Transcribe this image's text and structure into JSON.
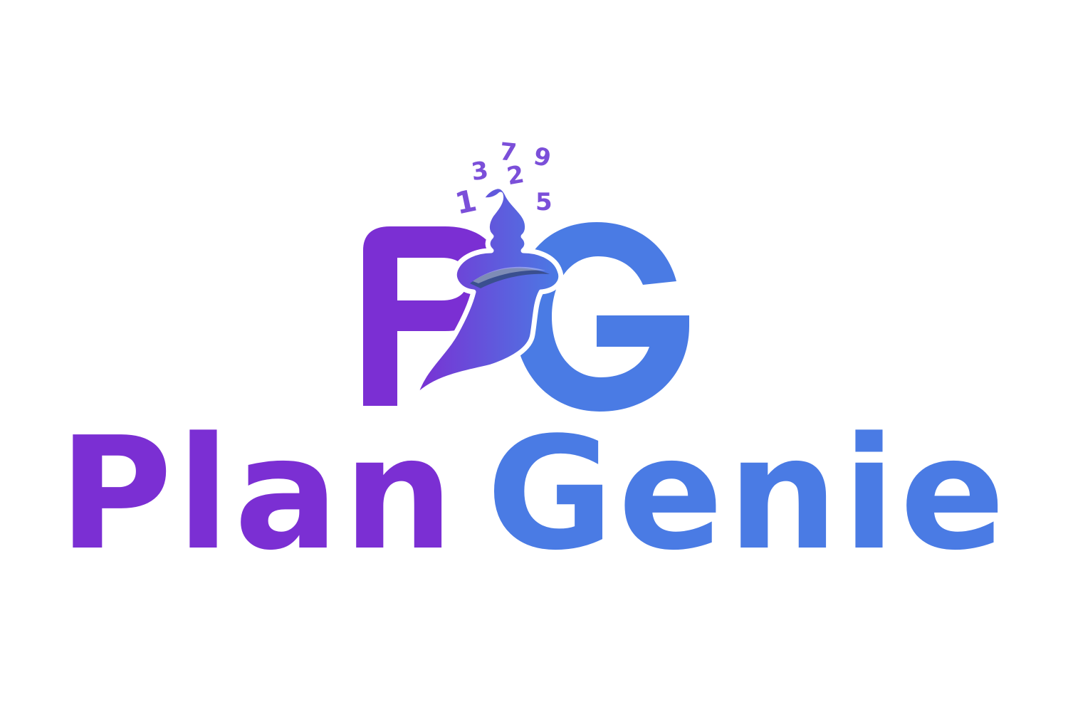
{
  "brand": {
    "name_part1": "Plan",
    "name_part2": "Genie",
    "monogram": {
      "letter1": "P",
      "letter2": "G"
    },
    "floating_digits": [
      "1",
      "3",
      "7",
      "2",
      "9",
      "5"
    ],
    "colors": {
      "purple": "#7b2fd3",
      "blue": "#4a7be4",
      "genie_gradient_start": "#7b2fd3",
      "genie_gradient_end": "#4a7be4",
      "sash": "#3a4f8f",
      "background": "#ffffff"
    }
  }
}
